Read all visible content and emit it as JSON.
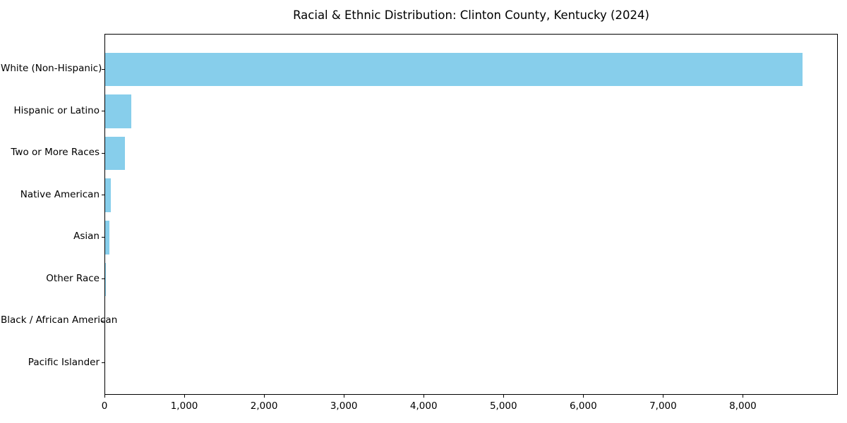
{
  "chart_data": {
    "type": "bar",
    "orientation": "horizontal",
    "title": "Racial & Ethnic Distribution: Clinton County, Kentucky (2024)",
    "categories": [
      "White (Non-Hispanic)",
      "Hispanic or Latino",
      "Two or More Races",
      "Native American",
      "Asian",
      "Other Race",
      "Black / African American",
      "Pacific Islander"
    ],
    "values": [
      8740,
      330,
      245,
      70,
      50,
      10,
      0,
      0
    ],
    "xlabel": "",
    "ylabel": "",
    "xlim": [
      0,
      9190
    ],
    "x_ticks": [
      0,
      1000,
      2000,
      3000,
      4000,
      5000,
      6000,
      7000,
      8000
    ],
    "x_tick_labels": [
      "0",
      "1,000",
      "2,000",
      "3,000",
      "4,000",
      "5,000",
      "6,000",
      "7,000",
      "8,000"
    ],
    "bar_color": "#87ceeb",
    "text_color": "#000000",
    "spine_color": "#000000",
    "background_color": "#ffffff",
    "grid": false,
    "legend": null
  }
}
